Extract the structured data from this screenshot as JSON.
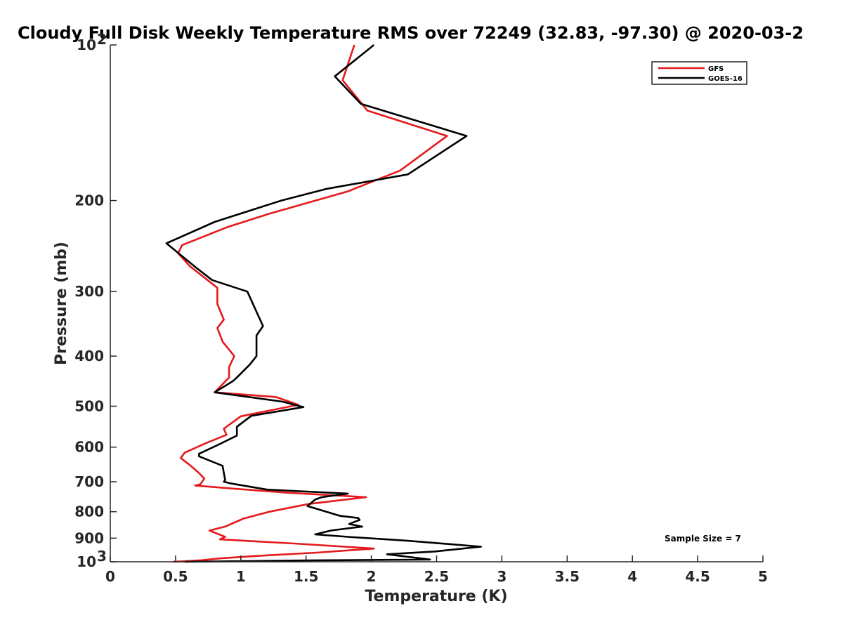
{
  "chart_data": {
    "type": "line",
    "title": "Cloudy Full Disk Weekly Temperature RMS over 72249 (32.83, -97.30) @ 2020-03-2",
    "xlabel": "Temperature (K)",
    "ylabel": "Pressure (mb)",
    "xlim": [
      0,
      5
    ],
    "ylim": [
      100,
      1000
    ],
    "y_scale": "log",
    "y_reversed": true,
    "x_ticks": [
      {
        "value": 0,
        "label": "0"
      },
      {
        "value": 0.5,
        "label": "0.5"
      },
      {
        "value": 1,
        "label": "1"
      },
      {
        "value": 1.5,
        "label": "1.5"
      },
      {
        "value": 2,
        "label": "2"
      },
      {
        "value": 2.5,
        "label": "2.5"
      },
      {
        "value": 3,
        "label": "3"
      },
      {
        "value": 3.5,
        "label": "3.5"
      },
      {
        "value": 4,
        "label": "4"
      },
      {
        "value": 4.5,
        "label": "4.5"
      },
      {
        "value": 5,
        "label": "5"
      }
    ],
    "y_ticks": [
      {
        "value": 100,
        "base": "10",
        "exp": "2"
      },
      {
        "value": 200,
        "base": "200",
        "exp": ""
      },
      {
        "value": 300,
        "base": "300",
        "exp": ""
      },
      {
        "value": 400,
        "base": "400",
        "exp": ""
      },
      {
        "value": 500,
        "base": "500",
        "exp": ""
      },
      {
        "value": 600,
        "base": "600",
        "exp": ""
      },
      {
        "value": 700,
        "base": "700",
        "exp": ""
      },
      {
        "value": 800,
        "base": "800",
        "exp": ""
      },
      {
        "value": 900,
        "base": "900",
        "exp": ""
      },
      {
        "value": 1000,
        "base": "10",
        "exp": "3"
      }
    ],
    "grid": false,
    "legend_position": "top-right",
    "annotation": "Sample Size = 7",
    "series": [
      {
        "name": "GFS",
        "color": "#e41a1c",
        "points": [
          [
            1.87,
            100
          ],
          [
            1.78,
            117
          ],
          [
            1.97,
            134
          ],
          [
            2.58,
            150
          ],
          [
            2.22,
            175
          ],
          [
            1.82,
            192
          ],
          [
            1.22,
            212
          ],
          [
            0.9,
            225
          ],
          [
            0.55,
            244
          ],
          [
            0.52,
            253
          ],
          [
            0.61,
            268
          ],
          [
            0.82,
            295
          ],
          [
            0.82,
            317
          ],
          [
            0.87,
            340
          ],
          [
            0.82,
            353
          ],
          [
            0.86,
            375
          ],
          [
            0.95,
            400
          ],
          [
            0.91,
            420
          ],
          [
            0.91,
            440
          ],
          [
            0.8,
            470
          ],
          [
            1.27,
            480
          ],
          [
            1.44,
            497
          ],
          [
            1.0,
            523
          ],
          [
            0.87,
            553
          ],
          [
            0.89,
            568
          ],
          [
            0.73,
            590
          ],
          [
            0.57,
            615
          ],
          [
            0.54,
            630
          ],
          [
            0.61,
            650
          ],
          [
            0.67,
            670
          ],
          [
            0.72,
            690
          ],
          [
            0.69,
            708
          ],
          [
            0.65,
            712
          ],
          [
            0.95,
            722
          ],
          [
            1.35,
            735
          ],
          [
            1.96,
            750
          ],
          [
            1.52,
            773
          ],
          [
            1.22,
            800
          ],
          [
            1.02,
            825
          ],
          [
            0.88,
            855
          ],
          [
            0.76,
            870
          ],
          [
            0.88,
            895
          ],
          [
            0.84,
            905
          ],
          [
            1.41,
            922
          ],
          [
            2.02,
            943
          ],
          [
            1.58,
            960
          ],
          [
            1.1,
            975
          ],
          [
            0.84,
            985
          ],
          [
            0.7,
            993
          ],
          [
            0.55,
            998
          ],
          [
            0.48,
            1000
          ]
        ]
      },
      {
        "name": "GOES-16",
        "color": "#000000",
        "points": [
          [
            2.02,
            100
          ],
          [
            1.72,
            115
          ],
          [
            1.92,
            130
          ],
          [
            2.73,
            150
          ],
          [
            2.28,
            178
          ],
          [
            1.65,
            190
          ],
          [
            1.31,
            200
          ],
          [
            0.8,
            220
          ],
          [
            0.43,
            242
          ],
          [
            0.66,
            270
          ],
          [
            0.78,
            285
          ],
          [
            1.05,
            300
          ],
          [
            1.17,
            350
          ],
          [
            1.12,
            365
          ],
          [
            1.12,
            400
          ],
          [
            1.07,
            415
          ],
          [
            0.97,
            440
          ],
          [
            0.94,
            447
          ],
          [
            0.8,
            470
          ],
          [
            1.32,
            490
          ],
          [
            1.48,
            502
          ],
          [
            1.08,
            522
          ],
          [
            0.97,
            548
          ],
          [
            0.97,
            570
          ],
          [
            0.82,
            595
          ],
          [
            0.68,
            618
          ],
          [
            0.68,
            625
          ],
          [
            0.86,
            652
          ],
          [
            0.88,
            695
          ],
          [
            0.87,
            700
          ],
          [
            0.92,
            705
          ],
          [
            1.2,
            725
          ],
          [
            1.82,
            738
          ],
          [
            1.62,
            750
          ],
          [
            1.57,
            758
          ],
          [
            1.51,
            780
          ],
          [
            1.76,
            815
          ],
          [
            1.9,
            823
          ],
          [
            1.91,
            830
          ],
          [
            1.83,
            845
          ],
          [
            1.93,
            855
          ],
          [
            1.69,
            870
          ],
          [
            1.57,
            885
          ],
          [
            1.82,
            895
          ],
          [
            2.27,
            910
          ],
          [
            2.84,
            935
          ],
          [
            2.49,
            955
          ],
          [
            2.12,
            967
          ],
          [
            2.45,
            990
          ],
          [
            1.5,
            994
          ],
          [
            0.57,
            1000
          ]
        ]
      }
    ]
  }
}
